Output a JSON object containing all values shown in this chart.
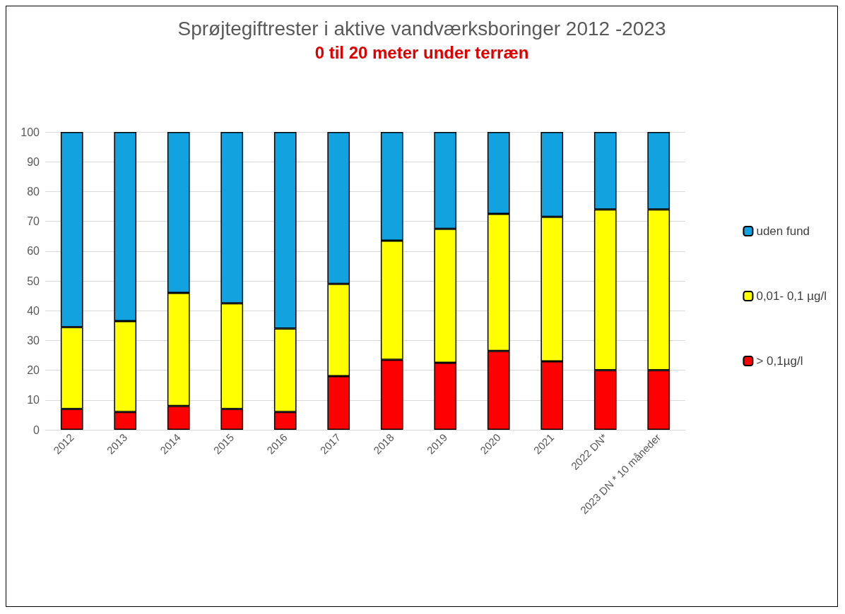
{
  "chart_data": {
    "type": "bar",
    "title": "Sprøjtegiftrester i aktive vandværksboringer 2012 -2023",
    "subtitle": "0 til 20 meter under terræn",
    "categories": [
      "2012",
      "2013",
      "2014",
      "2015",
      "2016",
      "2017",
      "2018",
      "2019",
      "2020",
      "2021",
      "2022 DN*",
      "2023 DN * 10 måneder"
    ],
    "series": [
      {
        "name": "> 0,1µg/l",
        "color": "#ff0000",
        "values": [
          7,
          6,
          8,
          7,
          6,
          18,
          23.5,
          22.5,
          26.5,
          23,
          20,
          20
        ]
      },
      {
        "name": "0,01- 0,1 µg/l",
        "color": "#ffff00",
        "values": [
          27.5,
          30.5,
          38,
          35.5,
          28,
          31,
          40,
          45,
          46,
          48.5,
          54,
          54
        ]
      },
      {
        "name": "uden fund",
        "color": "#12a2e0",
        "values": [
          65.5,
          63.5,
          54,
          57.5,
          66,
          51,
          36.5,
          32.5,
          27.5,
          28.5,
          26,
          26
        ]
      }
    ],
    "stacked": true,
    "ylim": [
      0,
      100
    ],
    "yticks": [
      0,
      10,
      20,
      30,
      40,
      50,
      60,
      70,
      80,
      90,
      100
    ],
    "grid": "y",
    "legend": "right"
  }
}
